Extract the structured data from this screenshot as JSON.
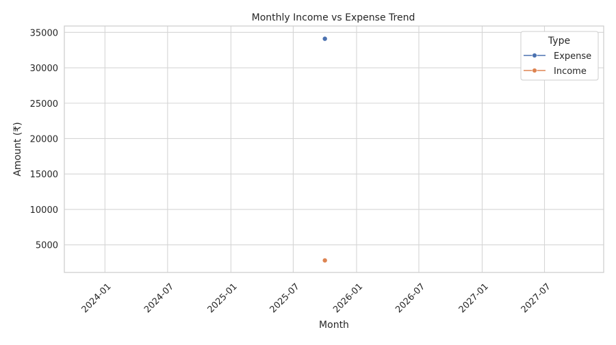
{
  "chart_data": {
    "type": "line",
    "title": "Monthly Income vs Expense Trend",
    "xlabel": "Month",
    "ylabel": "Amount (₹)",
    "x_ticks": [
      "2024-01",
      "2024-07",
      "2025-01",
      "2025-07",
      "2026-01",
      "2026-07",
      "2027-01",
      "2027-07"
    ],
    "y_ticks": [
      5000,
      10000,
      15000,
      20000,
      25000,
      30000,
      35000
    ],
    "xlim": [
      "2023-09-05",
      "2027-12-20"
    ],
    "ylim": [
      1100,
      35900
    ],
    "grid": true,
    "legend": {
      "title": "Type",
      "placement": "top-right"
    },
    "series": [
      {
        "name": "Expense",
        "color": "#4c72b0",
        "points": [
          {
            "x": "2025-10-01",
            "y": 34100
          }
        ]
      },
      {
        "name": "Income",
        "color": "#dd8452",
        "points": [
          {
            "x": "2025-10-01",
            "y": 2800
          }
        ]
      }
    ]
  }
}
